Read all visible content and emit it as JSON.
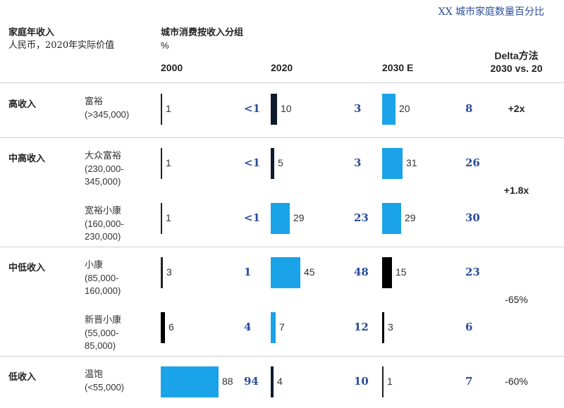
{
  "top_note": "XX 城市家庭数量百分比",
  "header": {
    "left_title": "家庭年收入",
    "left_sub": "人民币，2020年实际价值",
    "mid_title": "城市消费按收入分组",
    "mid_unit": "%",
    "delta_title": "Delta方法",
    "delta_sub": "2030 vs. 20"
  },
  "chart_data": {
    "type": "bar",
    "columns": [
      "2000",
      "2020",
      "2030 E"
    ],
    "groups": [
      {
        "category": "高收入",
        "rows": [
          {
            "label": "富裕",
            "range": "(>345,000)",
            "values": [
              1,
              10,
              20
            ],
            "blue": [
              "<1",
              "3",
              "8"
            ],
            "colors": [
              "#222222",
              "#0f1c2e",
              "#1aa3e8"
            ]
          }
        ],
        "delta": "+2x",
        "delta_bold": true
      },
      {
        "category": "中高收入",
        "rows": [
          {
            "label": "大众富裕",
            "range": "(230,000-\n345,000)",
            "values": [
              1,
              5,
              31
            ],
            "blue": [
              "<1",
              "3",
              "26"
            ],
            "colors": [
              "#222222",
              "#0f1c2e",
              "#1aa3e8"
            ]
          },
          {
            "label": "宽裕小康",
            "range": "(160,000-\n230,000)",
            "values": [
              1,
              29,
              29
            ],
            "blue": [
              "<1",
              "23",
              "30"
            ],
            "colors": [
              "#222222",
              "#1aa3e8",
              "#1aa3e8"
            ]
          }
        ],
        "delta": "+1.8x",
        "delta_bold": true
      },
      {
        "category": "中低收入",
        "rows": [
          {
            "label": "小康",
            "range": "(85,000-\n160,000)",
            "values": [
              3,
              45,
              15
            ],
            "blue": [
              "1",
              "48",
              "23"
            ],
            "colors": [
              "#222222",
              "#1aa3e8",
              "#000000"
            ]
          },
          {
            "label": "新晋小康",
            "range": "(55,000-\n85,000)",
            "values": [
              6,
              7,
              3
            ],
            "blue": [
              "4",
              "12",
              "6"
            ],
            "colors": [
              "#000000",
              "#1aa3e8",
              "#000000"
            ]
          }
        ],
        "delta": "-65%",
        "delta_bold": false
      },
      {
        "category": "低收入",
        "rows": [
          {
            "label": "温饱",
            "range": "(<55,000)",
            "values": [
              88,
              4,
              1
            ],
            "blue": [
              "94",
              "10",
              "7"
            ],
            "colors": [
              "#1aa3e8",
              "#0f1c2e",
              "#222222"
            ]
          }
        ],
        "delta": "-60%",
        "delta_bold": false
      }
    ]
  }
}
